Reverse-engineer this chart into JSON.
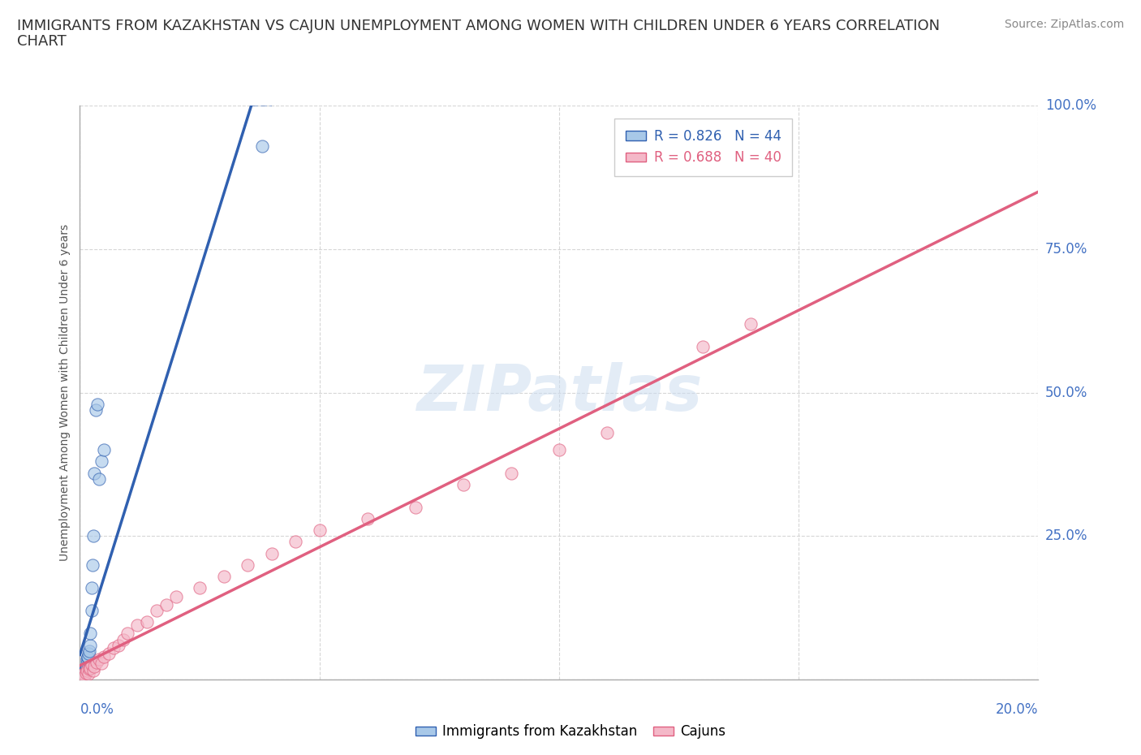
{
  "title_line1": "IMMIGRANTS FROM KAZAKHSTAN VS CAJUN UNEMPLOYMENT AMONG WOMEN WITH CHILDREN UNDER 6 YEARS CORRELATION",
  "title_line2": "CHART",
  "source": "Source: ZipAtlas.com",
  "ylabel": "Unemployment Among Women with Children Under 6 years",
  "legend_blue": "R = 0.826   N = 44",
  "legend_pink": "R = 0.688   N = 40",
  "legend_label_blue": "Immigrants from Kazakhstan",
  "legend_label_pink": "Cajuns",
  "blue_color": "#a8c8e8",
  "pink_color": "#f4b8c8",
  "blue_line_color": "#3060b0",
  "pink_line_color": "#e06080",
  "background_color": "#ffffff",
  "blue_points_x": [
    0.0002,
    0.0003,
    0.0003,
    0.0004,
    0.0004,
    0.0005,
    0.0005,
    0.0006,
    0.0006,
    0.0007,
    0.0007,
    0.0008,
    0.0008,
    0.0009,
    0.0009,
    0.001,
    0.001,
    0.001,
    0.0011,
    0.0011,
    0.0012,
    0.0012,
    0.0013,
    0.0013,
    0.0014,
    0.0015,
    0.0015,
    0.0016,
    0.0017,
    0.0018,
    0.002,
    0.0021,
    0.0022,
    0.0024,
    0.0025,
    0.0027,
    0.0028,
    0.003,
    0.0033,
    0.0036,
    0.004,
    0.0045,
    0.005,
    0.038
  ],
  "blue_points_y": [
    0.005,
    0.006,
    0.007,
    0.008,
    0.005,
    0.006,
    0.008,
    0.007,
    0.009,
    0.006,
    0.01,
    0.008,
    0.012,
    0.009,
    0.011,
    0.01,
    0.013,
    0.015,
    0.012,
    0.014,
    0.016,
    0.018,
    0.014,
    0.02,
    0.022,
    0.03,
    0.035,
    0.038,
    0.04,
    0.045,
    0.05,
    0.06,
    0.08,
    0.12,
    0.16,
    0.2,
    0.25,
    0.36,
    0.47,
    0.48,
    0.35,
    0.38,
    0.4,
    0.93
  ],
  "pink_points_x": [
    0.0003,
    0.0005,
    0.0008,
    0.001,
    0.0012,
    0.0015,
    0.0018,
    0.002,
    0.0022,
    0.0025,
    0.0028,
    0.003,
    0.0035,
    0.004,
    0.0045,
    0.005,
    0.006,
    0.007,
    0.008,
    0.009,
    0.01,
    0.012,
    0.014,
    0.016,
    0.018,
    0.02,
    0.025,
    0.03,
    0.035,
    0.04,
    0.045,
    0.05,
    0.06,
    0.07,
    0.08,
    0.09,
    0.1,
    0.11,
    0.13,
    0.14
  ],
  "pink_points_y": [
    0.005,
    0.008,
    0.01,
    0.006,
    0.012,
    0.015,
    0.01,
    0.018,
    0.02,
    0.025,
    0.015,
    0.022,
    0.03,
    0.035,
    0.028,
    0.04,
    0.045,
    0.055,
    0.06,
    0.07,
    0.08,
    0.095,
    0.1,
    0.12,
    0.13,
    0.145,
    0.16,
    0.18,
    0.2,
    0.22,
    0.24,
    0.26,
    0.28,
    0.3,
    0.34,
    0.36,
    0.4,
    0.43,
    0.58,
    0.62
  ],
  "xmin": 0.0,
  "xmax": 0.2,
  "ymin": 0.0,
  "ymax": 1.0,
  "title_fontsize": 13,
  "source_fontsize": 10,
  "axis_label_fontsize": 10,
  "tick_fontsize": 12,
  "legend_fontsize": 12
}
